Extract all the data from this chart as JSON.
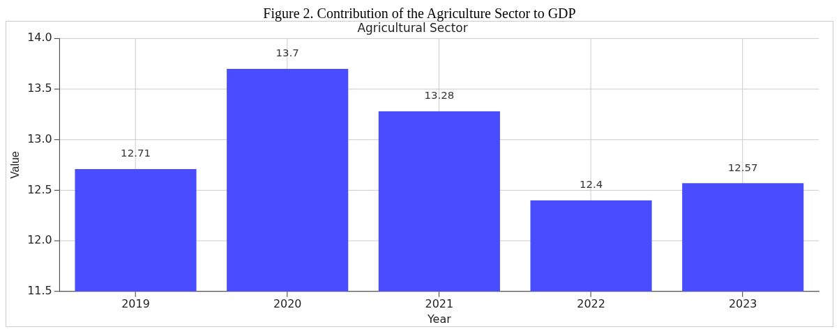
{
  "chart_data": {
    "type": "bar",
    "title": "Figure 2. Contribution of the Agriculture Sector to GDP",
    "subtitle": "Agricultural Sector",
    "xlabel": "Year",
    "ylabel": "Value",
    "categories": [
      "2019",
      "2020",
      "2021",
      "2022",
      "2023"
    ],
    "values": [
      12.71,
      13.7,
      13.28,
      12.4,
      12.57
    ],
    "color": "#4a4dff",
    "ylim": [
      11.5,
      14.0
    ],
    "yticks": [
      11.5,
      {
        "value": 12,
        "label": "12.0"
      },
      12.5,
      {
        "value": 13,
        "label": "13.0"
      },
      13.5,
      {
        "value": 14,
        "label": "14.0"
      }
    ],
    "grid": true,
    "data_labels": true
  }
}
